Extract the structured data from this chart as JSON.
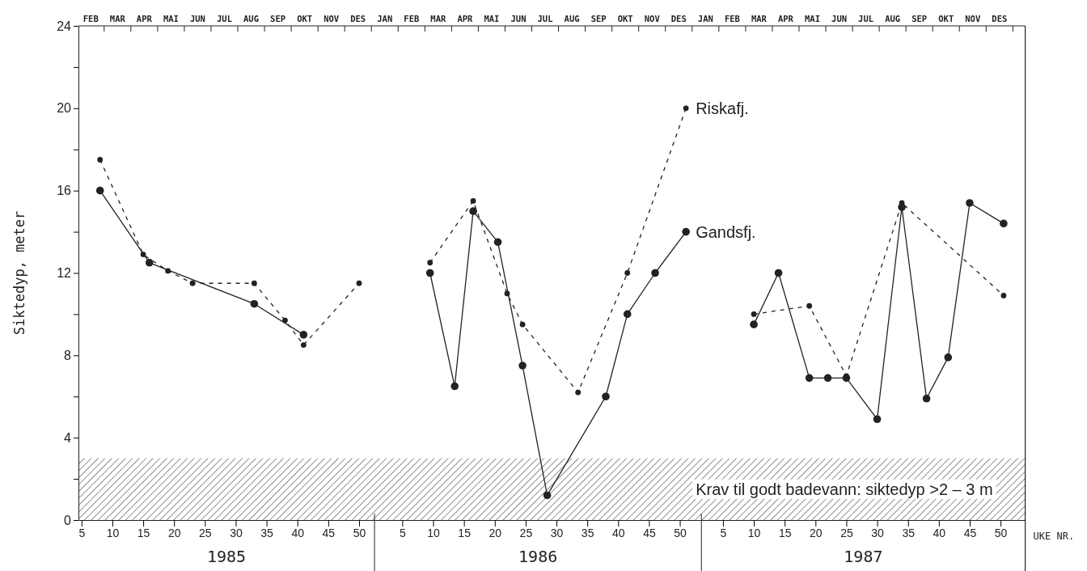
{
  "chart_data": [
    {
      "type": "line",
      "ylabel": "Siktedyp, meter",
      "xlim": [
        4.5,
        52.5
      ],
      "ylim": [
        0,
        24
      ],
      "xticks": [
        5,
        10,
        15,
        20,
        25,
        30,
        35,
        40,
        45,
        50
      ],
      "yticks": [
        0,
        {
          "value": 2,
          "label": null
        },
        4,
        {
          "value": 6,
          "label": null
        },
        8,
        {
          "value": 10,
          "label": null
        },
        12,
        {
          "value": 14,
          "label": null
        },
        16,
        {
          "value": 18,
          "label": null
        },
        20,
        {
          "value": 22,
          "label": null
        },
        24
      ],
      "marker": "circle",
      "series": [
        {
          "color": "#222222",
          "line_style": "solid",
          "x": [
            8,
            16,
            33,
            41
          ],
          "values": [
            16,
            12.5,
            10.5,
            9
          ]
        },
        {
          "color": "#222222",
          "line_style": "dashed",
          "x": [
            8,
            15,
            19,
            23,
            33,
            38,
            41,
            50
          ],
          "values": [
            17.5,
            12.9,
            12.1,
            11.5,
            11.5,
            9.7,
            8.5,
            11.5
          ]
        }
      ],
      "bands": [
        {
          "axis": "y",
          "from": 0,
          "to": 3
        }
      ],
      "annotations": [
        "1985",
        "FEB",
        "MAR",
        "APR",
        "MAI",
        "JUN",
        "JUL",
        "AUG",
        "SEP",
        "OKT",
        "NOV",
        "DES"
      ]
    },
    {
      "type": "line",
      "xlim": [
        0.5,
        53.5
      ],
      "ylim": [
        0,
        24
      ],
      "xticks": [
        5,
        10,
        15,
        20,
        25,
        30,
        35,
        40,
        45,
        50
      ],
      "tick_labels": "x",
      "marker": "circle",
      "series": [
        {
          "name": "Gandsfj.",
          "color": "#222222",
          "line_style": "solid",
          "x": [
            9.5,
            13.5,
            16.5,
            20.5,
            24.5,
            28.5,
            38,
            41.5,
            46,
            51
          ],
          "values": [
            12,
            6.5,
            15,
            13.5,
            7.5,
            1.2,
            6,
            10,
            12,
            14
          ]
        },
        {
          "name": "Riskafj.",
          "color": "#222222",
          "line_style": "dashed",
          "x": [
            9.5,
            16.5,
            22,
            24.5,
            33.5,
            41.5,
            51
          ],
          "values": [
            12.5,
            15.5,
            11,
            9.5,
            6.2,
            12,
            20
          ]
        }
      ],
      "bands": [
        {
          "axis": "y",
          "from": 0,
          "to": 3
        }
      ],
      "annotations": [
        "1986",
        "JAN",
        "FEB",
        "MAR",
        "APR",
        "MAI",
        "JUN",
        "JUL",
        "AUG",
        "SEP",
        "OKT",
        "NOV",
        "DES"
      ]
    },
    {
      "type": "line",
      "xlabel": "UKE NR.",
      "xlim": [
        1.5,
        54
      ],
      "ylim": [
        0,
        24
      ],
      "xticks": [
        5,
        10,
        15,
        20,
        25,
        30,
        35,
        40,
        45,
        50
      ],
      "tick_labels": "x",
      "marker": "circle",
      "series": [
        {
          "color": "#222222",
          "line_style": "solid",
          "x": [
            10,
            14,
            19,
            22,
            25,
            30,
            34,
            38,
            41.5,
            45,
            50.5
          ],
          "values": [
            9.5,
            12,
            6.9,
            6.9,
            6.9,
            4.9,
            15.2,
            5.9,
            7.9,
            15.4,
            14.4
          ]
        },
        {
          "color": "#222222",
          "line_style": "dashed",
          "x": [
            10,
            19,
            25,
            34,
            50.5
          ],
          "values": [
            10,
            10.4,
            7,
            15.4,
            10.9
          ]
        }
      ],
      "bands": [
        {
          "axis": "y",
          "from": 0,
          "to": 3,
          "label": "Krav til godt badevann: siktedyp >2 – 3 m"
        }
      ],
      "annotations": [
        "1987",
        "JAN",
        "FEB",
        "MAR",
        "APR",
        "MAI",
        "JUN",
        "JUL",
        "AUG",
        "SEP",
        "OKT",
        "NOV",
        "DES"
      ]
    }
  ]
}
